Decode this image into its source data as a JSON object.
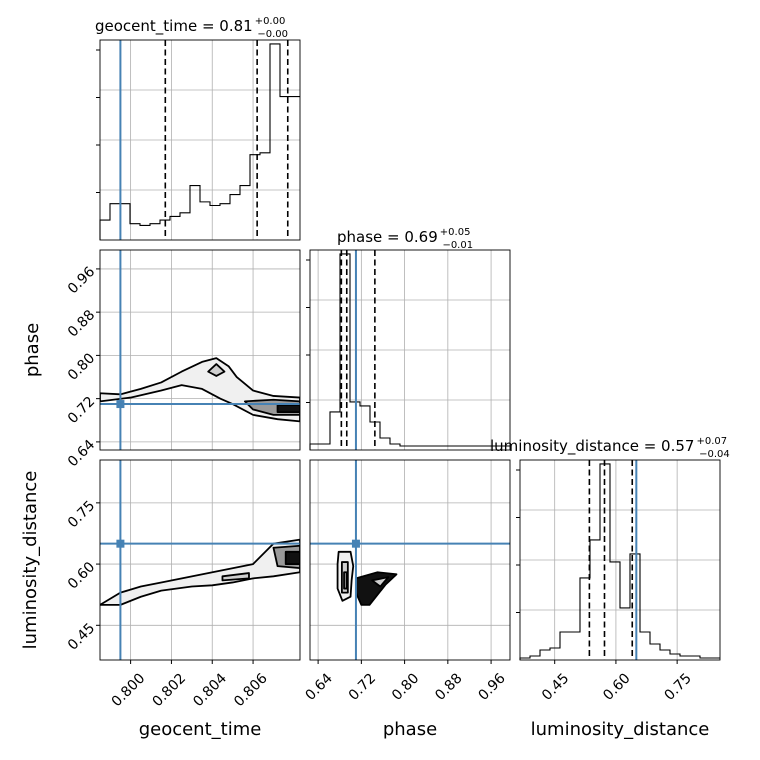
{
  "truth_color": "#4682b4",
  "chart_data": {
    "type": "corner",
    "parameters": [
      "geocent_time",
      "phase",
      "luminosity_distance"
    ],
    "truths": {
      "geocent_time": 0.7995,
      "phase": 0.71,
      "luminosity_distance": 0.65
    },
    "ranges": {
      "geocent_time": [
        0.7985,
        0.8083
      ],
      "phase": [
        0.625,
        0.995
      ],
      "luminosity_distance": [
        0.365,
        0.855
      ]
    },
    "ticks": {
      "geocent_time": [
        "0.800",
        "0.802",
        "0.804",
        "0.806"
      ],
      "phase": [
        "0.64",
        "0.72",
        "0.80",
        "0.88",
        "0.96"
      ],
      "luminosity_distance": [
        "0.45",
        "0.60",
        "0.75"
      ]
    },
    "titles": [
      {
        "param": "geocent_time",
        "main": "geocent_time = 0.81",
        "plus": "+0.00",
        "minus": "−0.00"
      },
      {
        "param": "phase",
        "main": "phase = 0.69",
        "plus": "+0.05",
        "minus": "−0.01"
      },
      {
        "param": "luminosity_distance",
        "main": "luminosity_distance = 0.57",
        "plus": "+0.07",
        "minus": "−0.04"
      }
    ],
    "marginals": {
      "geocent_time": {
        "bin_edges": [
          0.7985,
          0.79899,
          0.79948,
          0.79997,
          0.80046,
          0.80095,
          0.80144,
          0.80193,
          0.80242,
          0.80291,
          0.8034,
          0.80389,
          0.80438,
          0.80487,
          0.80536,
          0.80585,
          0.80634,
          0.80683,
          0.80732,
          0.80781,
          0.8083
        ],
        "counts": [
          0.11,
          0.2,
          0.2,
          0.09,
          0.08,
          0.09,
          0.11,
          0.13,
          0.15,
          0.3,
          0.21,
          0.19,
          0.2,
          0.25,
          0.3,
          0.47,
          0.48,
          1.08,
          0.79,
          0.79
        ],
        "quantiles": [
          0.8017,
          0.8062,
          0.8077
        ]
      },
      "phase": {
        "bin_edges": [
          0.625,
          0.6435,
          0.662,
          0.6805,
          0.699,
          0.7175,
          0.736,
          0.7545,
          0.773,
          0.7915,
          0.81,
          0.8285,
          0.847,
          0.8655,
          0.884,
          0.9025,
          0.921,
          0.9395,
          0.958,
          0.9765,
          0.995
        ],
        "counts": [
          0.03,
          0.03,
          0.19,
          0.98,
          0.24,
          0.22,
          0.14,
          0.06,
          0.03,
          0.02,
          0.02,
          0.02,
          0.02,
          0.02,
          0.02,
          0.02,
          0.02,
          0.02,
          0.02,
          0.02
        ],
        "quantiles": [
          0.683,
          0.693,
          0.745
        ]
      },
      "luminosity_distance": {
        "bin_edges": [
          0.365,
          0.3895,
          0.414,
          0.4385,
          0.463,
          0.4875,
          0.512,
          0.5365,
          0.561,
          0.5855,
          0.61,
          0.6345,
          0.659,
          0.6835,
          0.708,
          0.7325,
          0.757,
          0.7815,
          0.806,
          0.8305,
          0.855
        ],
        "counts": [
          0.01,
          0.02,
          0.05,
          0.06,
          0.14,
          0.14,
          0.41,
          0.6,
          0.98,
          0.49,
          0.26,
          0.53,
          0.14,
          0.08,
          0.05,
          0.03,
          0.02,
          0.02,
          0.01,
          0.01
        ],
        "quantiles": [
          0.535,
          0.572,
          0.64
        ]
      }
    },
    "joint": [
      {
        "x": "geocent_time",
        "y": "phase",
        "contours": [
          [
            [
              0.7985,
              0.73
            ],
            [
              0.7995,
              0.728
            ],
            [
              0.8005,
              0.738
            ],
            [
              0.8015,
              0.75
            ],
            [
              0.8025,
              0.77
            ],
            [
              0.8035,
              0.788
            ],
            [
              0.8042,
              0.795
            ],
            [
              0.8048,
              0.78
            ],
            [
              0.8052,
              0.76
            ],
            [
              0.806,
              0.735
            ],
            [
              0.807,
              0.725
            ],
            [
              0.8083,
              0.722
            ],
            [
              0.8083,
              0.678
            ],
            [
              0.8072,
              0.682
            ],
            [
              0.806,
              0.69
            ],
            [
              0.805,
              0.71
            ],
            [
              0.8044,
              0.72
            ],
            [
              0.8035,
              0.738
            ],
            [
              0.8025,
              0.745
            ],
            [
              0.8015,
              0.735
            ],
            [
              0.8,
              0.722
            ],
            [
              0.7985,
              0.715
            ]
          ],
          [
            [
              0.8038,
              0.77
            ],
            [
              0.8042,
              0.784
            ],
            [
              0.8046,
              0.77
            ],
            [
              0.8042,
              0.762
            ]
          ],
          [
            [
              0.8056,
              0.715
            ],
            [
              0.807,
              0.718
            ],
            [
              0.8083,
              0.715
            ],
            [
              0.8083,
              0.69
            ],
            [
              0.807,
              0.69
            ],
            [
              0.806,
              0.7
            ]
          ],
          [
            [
              0.8072,
              0.708
            ],
            [
              0.8083,
              0.708
            ],
            [
              0.8083,
              0.695
            ],
            [
              0.8072,
              0.695
            ]
          ]
        ]
      },
      {
        "x": "geocent_time",
        "y": "luminosity_distance",
        "contours": [
          [
            [
              0.7985,
              0.5
            ],
            [
              0.7995,
              0.53
            ],
            [
              0.8005,
              0.545
            ],
            [
              0.8015,
              0.555
            ],
            [
              0.803,
              0.57
            ],
            [
              0.8045,
              0.585
            ],
            [
              0.806,
              0.6
            ],
            [
              0.807,
              0.65
            ],
            [
              0.8083,
              0.66
            ],
            [
              0.8083,
              0.58
            ],
            [
              0.807,
              0.57
            ],
            [
              0.806,
              0.565
            ],
            [
              0.805,
              0.555
            ],
            [
              0.804,
              0.548
            ],
            [
              0.803,
              0.545
            ],
            [
              0.8015,
              0.535
            ],
            [
              0.8005,
              0.52
            ],
            [
              0.7995,
              0.5
            ]
          ],
          [
            [
              0.8045,
              0.57
            ],
            [
              0.8058,
              0.578
            ],
            [
              0.8058,
              0.565
            ],
            [
              0.8045,
              0.56
            ]
          ],
          [
            [
              0.807,
              0.64
            ],
            [
              0.8083,
              0.645
            ],
            [
              0.8083,
              0.59
            ],
            [
              0.8072,
              0.595
            ]
          ],
          [
            [
              0.8076,
              0.63
            ],
            [
              0.8083,
              0.63
            ],
            [
              0.8083,
              0.6
            ],
            [
              0.8076,
              0.6
            ]
          ]
        ]
      },
      {
        "x": "phase",
        "y": "luminosity_distance",
        "contours": [
          [
            [
              0.678,
              0.63
            ],
            [
              0.7,
              0.63
            ],
            [
              0.705,
              0.595
            ],
            [
              0.702,
              0.56
            ],
            [
              0.7,
              0.52
            ],
            [
              0.685,
              0.51
            ],
            [
              0.676,
              0.54
            ],
            [
              0.676,
              0.6
            ]
          ],
          [
            [
              0.684,
              0.605
            ],
            [
              0.695,
              0.605
            ],
            [
              0.695,
              0.53
            ],
            [
              0.684,
              0.53
            ]
          ],
          [
            [
              0.688,
              0.58
            ],
            [
              0.693,
              0.58
            ],
            [
              0.693,
              0.54
            ],
            [
              0.688,
              0.54
            ]
          ],
          [
            [
              0.71,
              0.565
            ],
            [
              0.75,
              0.58
            ],
            [
              0.785,
              0.575
            ],
            [
              0.765,
              0.55
            ],
            [
              0.735,
              0.5
            ],
            [
              0.72,
              0.5
            ],
            [
              0.71,
              0.53
            ]
          ],
          [
            [
              0.74,
              0.56
            ],
            [
              0.77,
              0.568
            ],
            [
              0.755,
              0.545
            ]
          ]
        ]
      }
    ]
  }
}
